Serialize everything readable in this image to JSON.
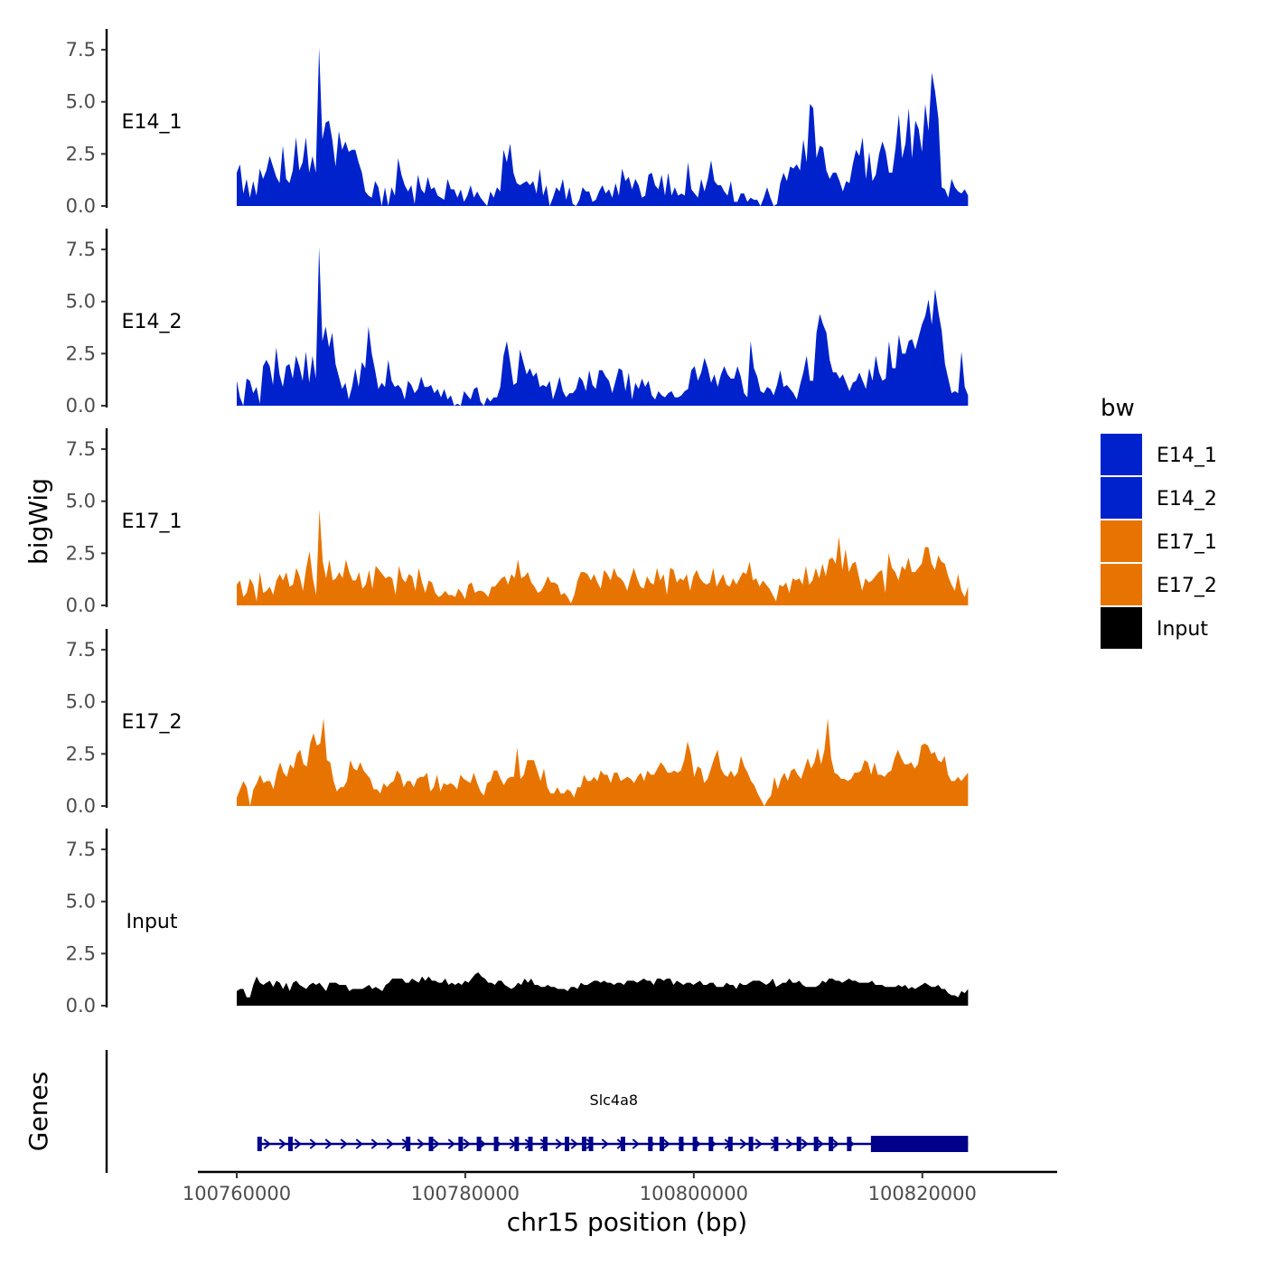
{
  "chart_data": {
    "type": "area",
    "ylabel": "bigWig",
    "xlabel": "chr15 position (bp)",
    "x_range": [
      100760000,
      100824000
    ],
    "x_axis_limits": [
      100756600,
      100831800
    ],
    "x_ticks": [
      100760000,
      100780000,
      100800000,
      100820000
    ],
    "x_tick_labels": [
      "100760000",
      "100780000",
      "100800000",
      "100820000"
    ],
    "ylim": [
      0,
      8.5
    ],
    "y_ticks": [
      0,
      2.5,
      5,
      7.5
    ],
    "y_tick_labels": [
      "0.0",
      "2.5",
      "5.0",
      "7.5"
    ],
    "tracks": [
      {
        "name": "E14_1",
        "color": "#0022CC",
        "values": [
          1.6,
          2.0,
          0.6,
          1.3,
          0.4,
          1.2,
          0.5,
          1.8,
          1.3,
          1.7,
          2.4,
          1.9,
          1.4,
          1.1,
          2.9,
          1.3,
          1.1,
          1.7,
          3.3,
          1.7,
          2.1,
          3.3,
          1.6,
          2.4,
          1.6,
          7.6,
          3.2,
          4.0,
          4.1,
          3.2,
          1.9,
          3.6,
          2.7,
          3.1,
          2.6,
          2.7,
          2.7,
          2.1,
          1.6,
          0.7,
          0.5,
          0.4,
          1.2,
          0.9,
          0.0,
          0.9,
          0.0,
          0.9,
          0.5,
          2.3,
          1.5,
          1.0,
          0.7,
          1.0,
          0.1,
          1.5,
          0.8,
          0.6,
          1.4,
          0.8,
          0.9,
          0.5,
          0.4,
          0.3,
          1.3,
          0.8,
          0.8,
          0.4,
          0.8,
          0.2,
          0.5,
          1.0,
          0.4,
          0.7,
          0.4,
          0.2,
          0.0,
          0.7,
          0.4,
          0.9,
          0.7,
          2.7,
          2.1,
          3.0,
          1.6,
          1.1,
          1.0,
          1.1,
          1.2,
          1.0,
          1.2,
          0.6,
          1.8,
          0.5,
          1.0,
          0.0,
          0.4,
          0.9,
          0.7,
          1.3,
          0.3,
          0.9,
          0.1,
          0.0,
          0.3,
          0.9,
          0.7,
          0.7,
          0.2,
          0.3,
          0.7,
          1.0,
          0.6,
          0.8,
          0.4,
          1.1,
          0.5,
          1.8,
          1.2,
          1.4,
          0.8,
          1.3,
          1.0,
          0.4,
          0.5,
          1.5,
          1.6,
          1.0,
          0.8,
          1.5,
          0.5,
          1.6,
          0.5,
          0.9,
          0.5,
          0.6,
          0.5,
          2.1,
          0.8,
          0.6,
          0.4,
          1.3,
          0.7,
          1.3,
          2.2,
          1.2,
          1.0,
          1.0,
          0.7,
          0.5,
          1.2,
          0.2,
          0.2,
          0.6,
          0.6,
          0.2,
          0.4,
          0.3,
          0.3,
          0.0,
          0.4,
          0.9,
          0.4,
          0.0,
          0.1,
          1.1,
          1.6,
          1.2,
          1.9,
          1.8,
          2.0,
          1.7,
          3.2,
          2.1,
          4.9,
          4.7,
          2.3,
          2.9,
          2.8,
          1.7,
          1.3,
          1.6,
          1.6,
          1.2,
          0.7,
          1.2,
          1.1,
          2.0,
          2.7,
          2.4,
          3.3,
          1.3,
          2.6,
          1.2,
          1.5,
          2.5,
          3.1,
          2.6,
          1.6,
          1.6,
          2.8,
          4.4,
          2.3,
          3.0,
          4.7,
          2.3,
          4.1,
          3.7,
          2.6,
          4.9,
          3.6,
          6.4,
          5.5,
          4.2,
          0.9,
          0.8,
          0.4,
          1.3,
          0.9,
          0.7,
          0.6,
          0.8,
          0.5
        ]
      },
      {
        "name": "E14_2",
        "color": "#0022CC",
        "values": [
          1.2,
          0.4,
          0.0,
          1.3,
          1.2,
          0.6,
          0.9,
          0.1,
          1.9,
          2.2,
          1.9,
          1.0,
          2.8,
          1.5,
          0.9,
          1.9,
          2.0,
          1.3,
          2.4,
          1.9,
          1.2,
          2.6,
          1.1,
          2.4,
          1.3,
          7.6,
          3.1,
          3.8,
          2.8,
          3.5,
          2.0,
          1.4,
          0.8,
          1.1,
          0.3,
          0.9,
          1.8,
          0.9,
          2.1,
          1.8,
          3.8,
          2.5,
          1.7,
          0.8,
          1.1,
          0.9,
          2.2,
          1.2,
          0.9,
          1.0,
          0.8,
          0.3,
          1.2,
          1.0,
          0.6,
          0.8,
          1.4,
          0.9,
          0.9,
          1.0,
          0.6,
          0.8,
          0.4,
          0.8,
          0.3,
          0.5,
          0.0,
          0.1,
          0.0,
          0.7,
          0.5,
          0.3,
          0.8,
          0.9,
          0.2,
          0.0,
          0.4,
          0.2,
          0.4,
          0.4,
          0.9,
          2.4,
          3.1,
          2.1,
          1.0,
          1.1,
          2.7,
          2.1,
          1.5,
          1.8,
          1.4,
          1.6,
          0.9,
          1.0,
          0.9,
          1.2,
          0.3,
          0.8,
          1.4,
          0.7,
          0.4,
          0.6,
          0.6,
          0.8,
          1.4,
          1.2,
          0.7,
          1.7,
          1.0,
          0.8,
          1.7,
          1.7,
          1.4,
          1.2,
          0.6,
          1.2,
          1.8,
          1.7,
          0.7,
          1.6,
          0.3,
          1.1,
          0.8,
          1.3,
          0.9,
          1.2,
          0.5,
          0.3,
          0.7,
          0.5,
          0.4,
          0.6,
          0.7,
          0.4,
          0.4,
          0.5,
          0.7,
          0.8,
          1.7,
          1.9,
          1.2,
          1.6,
          2.3,
          1.8,
          1.1,
          1.5,
          0.9,
          1.5,
          1.9,
          1.5,
          1.3,
          1.3,
          1.9,
          1.4,
          0.6,
          0.4,
          3.1,
          1.8,
          1.4,
          0.7,
          0.6,
          0.9,
          0.8,
          0.5,
          1.0,
          1.7,
          0.9,
          1.0,
          0.8,
          0.6,
          0.3,
          1.0,
          1.6,
          2.4,
          1.2,
          1.2,
          3.5,
          4.4,
          3.9,
          3.5,
          2.2,
          1.6,
          1.6,
          1.3,
          1.5,
          1.1,
          0.7,
          1.1,
          1.2,
          1.6,
          1.2,
          0.8,
          1.8,
          1.2,
          2.4,
          1.6,
          1.2,
          1.3,
          3.1,
          1.8,
          1.8,
          3.4,
          2.5,
          2.5,
          3.1,
          3.2,
          2.7,
          3.3,
          3.9,
          4.3,
          5.1,
          3.9,
          5.6,
          4.5,
          3.6,
          2.0,
          1.3,
          0.6,
          0.7,
          0.6,
          2.6,
          0.9,
          0.5
        ]
      },
      {
        "name": "E17_1",
        "color": "#E87400",
        "values": [
          1.0,
          1.2,
          0.4,
          0.6,
          1.3,
          1.0,
          0.2,
          1.6,
          0.6,
          0.7,
          0.9,
          0.5,
          1.2,
          1.5,
          1.2,
          1.6,
          0.9,
          1.0,
          1.8,
          1.4,
          0.7,
          1.8,
          2.6,
          1.3,
          0.5,
          4.6,
          2.1,
          1.3,
          2.2,
          1.2,
          1.3,
          1.6,
          1.3,
          2.2,
          1.6,
          1.2,
          1.2,
          1.6,
          0.8,
          1.0,
          1.7,
          0.8,
          1.9,
          1.7,
          1.5,
          1.3,
          1.4,
          1.3,
          0.5,
          1.9,
          1.3,
          1.1,
          1.5,
          1.4,
          0.7,
          1.8,
          1.1,
          0.6,
          1.2,
          1.1,
          0.6,
          0.4,
          0.5,
          0.7,
          0.5,
          0.5,
          0.4,
          0.8,
          0.6,
          0.3,
          1.0,
          1.1,
          0.6,
          0.7,
          0.7,
          0.6,
          0.4,
          0.9,
          0.9,
          1.1,
          1.3,
          1.4,
          1.0,
          1.5,
          1.3,
          2.2,
          1.3,
          1.4,
          1.6,
          1.1,
          0.9,
          0.6,
          0.7,
          1.0,
          1.4,
          1.1,
          1.1,
          1.0,
          0.5,
          0.6,
          0.4,
          0.1,
          0.5,
          1.2,
          1.6,
          1.6,
          1.5,
          1.2,
          1.5,
          1.1,
          0.8,
          1.7,
          1.5,
          1.2,
          1.8,
          1.4,
          1.3,
          1.1,
          0.7,
          1.3,
          1.8,
          1.3,
          0.9,
          0.8,
          1.4,
          1.1,
          1.0,
          1.8,
          1.2,
          1.5,
          0.5,
          1.8,
          1.7,
          1.1,
          1.3,
          1.2,
          1.5,
          0.7,
          1.4,
          1.7,
          1.3,
          1.1,
          1.0,
          1.1,
          1.8,
          0.9,
          1.2,
          1.5,
          1.0,
          0.9,
          1.3,
          1.0,
          1.3,
          1.6,
          1.5,
          2.1,
          1.2,
          1.3,
          0.9,
          1.2,
          1.0,
          0.8,
          0.5,
          0.2,
          1.0,
          0.9,
          1.1,
          0.6,
          1.3,
          1.2,
          1.3,
          1.0,
          1.9,
          1.0,
          1.2,
          1.8,
          1.3,
          2.0,
          1.4,
          2.2,
          2.3,
          2.0,
          3.3,
          1.7,
          2.7,
          1.6,
          2.0,
          2.1,
          1.4,
          0.7,
          1.3,
          1.1,
          1.2,
          1.4,
          1.6,
          1.7,
          0.6,
          2.5,
          1.8,
          1.6,
          1.2,
          1.9,
          1.7,
          2.3,
          1.6,
          1.6,
          1.8,
          2.0,
          2.8,
          2.8,
          2.0,
          1.7,
          2.4,
          2.1,
          2.0,
          1.4,
          1.0,
          0.7,
          1.5,
          0.7,
          0.4,
          0.9
        ]
      },
      {
        "name": "E17_2",
        "color": "#E87400",
        "values": [
          0.4,
          0.8,
          1.2,
          0.9,
          0.0,
          0.8,
          1.1,
          1.5,
          1.1,
          1.2,
          1.2,
          0.8,
          1.6,
          2.1,
          1.6,
          1.4,
          2.0,
          1.8,
          2.5,
          2.7,
          2.0,
          1.9,
          3.0,
          3.5,
          2.9,
          3.0,
          4.2,
          2.2,
          2.1,
          1.2,
          0.7,
          0.9,
          0.9,
          1.2,
          2.2,
          1.8,
          1.7,
          2.1,
          1.7,
          1.5,
          1.3,
          0.8,
          0.8,
          0.6,
          1.1,
          0.9,
          1.1,
          1.2,
          1.7,
          1.5,
          0.9,
          1.2,
          1.2,
          0.9,
          1.3,
          1.4,
          1.4,
          1.6,
          0.7,
          0.9,
          1.5,
          0.7,
          1.1,
          1.0,
          1.1,
          1.0,
          0.8,
          1.5,
          1.3,
          1.2,
          1.1,
          1.6,
          1.1,
          0.7,
          0.5,
          1.1,
          1.2,
          1.7,
          1.7,
          1.3,
          1.0,
          1.3,
          1.4,
          1.4,
          2.8,
          1.3,
          1.5,
          2.2,
          2.2,
          2.2,
          1.7,
          1.2,
          1.8,
          0.9,
          0.6,
          0.6,
          0.9,
          0.6,
          0.6,
          0.8,
          0.7,
          0.4,
          0.9,
          0.9,
          1.5,
          1.2,
          1.2,
          1.4,
          1.2,
          1.7,
          1.5,
          1.5,
          1.1,
          1.6,
          1.6,
          1.2,
          1.3,
          1.4,
          1.3,
          1.1,
          1.4,
          1.6,
          1.2,
          1.7,
          1.5,
          1.5,
          1.8,
          2.1,
          1.9,
          1.6,
          1.6,
          1.7,
          1.6,
          1.7,
          2.2,
          3.1,
          2.5,
          1.4,
          1.9,
          1.8,
          1.1,
          1.3,
          1.8,
          2.3,
          2.7,
          1.8,
          1.5,
          1.4,
          1.7,
          1.4,
          1.6,
          2.4,
          1.9,
          1.6,
          1.2,
          1.0,
          0.6,
          0.3,
          0.0,
          0.3,
          0.5,
          1.4,
          0.8,
          1.3,
          1.6,
          1.2,
          1.7,
          1.8,
          1.5,
          1.3,
          1.8,
          2.3,
          1.8,
          2.1,
          2.8,
          2.0,
          2.7,
          4.2,
          2.3,
          1.6,
          1.5,
          1.3,
          1.3,
          1.2,
          1.3,
          1.6,
          1.6,
          1.7,
          2.2,
          2.1,
          1.5,
          2.1,
          1.5,
          1.5,
          1.4,
          1.6,
          1.7,
          2.3,
          2.7,
          2.3,
          2.0,
          2.0,
          2.1,
          1.8,
          2.0,
          2.9,
          3.0,
          2.9,
          2.5,
          2.6,
          2.2,
          2.1,
          2.4,
          1.5,
          1.2,
          1.2,
          1.4,
          1.2,
          1.4,
          1.6
        ]
      },
      {
        "name": "Input",
        "color": "#000000",
        "values": [
          0.7,
          0.8,
          0.8,
          0.4,
          0.4,
          1.0,
          1.4,
          1.1,
          1.0,
          1.1,
          1.2,
          0.9,
          1.2,
          1.1,
          0.8,
          1.1,
          0.7,
          1.1,
          1.2,
          1.0,
          0.9,
          0.8,
          1.0,
          1.1,
          1.0,
          1.1,
          0.9,
          0.7,
          1.1,
          1.1,
          1.1,
          1.0,
          1.0,
          1.0,
          0.7,
          0.8,
          0.8,
          0.8,
          0.8,
          0.9,
          1.0,
          0.8,
          0.9,
          0.8,
          0.7,
          1.0,
          1.1,
          1.3,
          1.3,
          1.3,
          1.3,
          1.1,
          1.1,
          1.3,
          1.2,
          1.1,
          1.4,
          1.2,
          1.4,
          1.2,
          1.2,
          1.1,
          1.1,
          1.3,
          1.0,
          1.1,
          1.0,
          1.1,
          1.0,
          1.2,
          1.1,
          1.3,
          1.5,
          1.6,
          1.4,
          1.3,
          1.1,
          1.1,
          1.0,
          1.2,
          1.2,
          1.0,
          0.9,
          0.8,
          0.9,
          1.1,
          1.0,
          1.3,
          1.1,
          1.3,
          1.0,
          1.0,
          0.9,
          0.9,
          1.0,
          0.9,
          0.9,
          0.8,
          0.8,
          0.8,
          0.7,
          0.9,
          0.9,
          0.8,
          1.1,
          1.0,
          1.0,
          1.1,
          1.2,
          1.2,
          1.1,
          1.2,
          1.1,
          1.1,
          1.0,
          1.1,
          1.1,
          1.0,
          1.2,
          1.2,
          1.2,
          1.1,
          1.2,
          1.3,
          1.2,
          1.2,
          1.0,
          1.3,
          1.3,
          1.2,
          1.3,
          1.3,
          1.0,
          1.2,
          1.1,
          1.0,
          1.1,
          1.1,
          1.0,
          1.1,
          1.2,
          1.0,
          1.0,
          1.1,
          1.1,
          0.9,
          0.9,
          0.9,
          1.1,
          1.0,
          1.0,
          0.8,
          1.1,
          1.0,
          1.0,
          1.1,
          1.2,
          1.2,
          1.2,
          1.1,
          1.0,
          1.1,
          1.3,
          0.9,
          1.0,
          1.1,
          1.1,
          1.3,
          1.1,
          1.1,
          1.2,
          1.0,
          0.9,
          0.9,
          0.9,
          0.9,
          1.0,
          1.2,
          1.1,
          1.3,
          1.3,
          1.2,
          1.2,
          1.1,
          1.2,
          1.3,
          1.2,
          1.2,
          1.1,
          1.1,
          1.1,
          1.1,
          1.2,
          1.0,
          1.0,
          1.0,
          0.9,
          0.9,
          0.9,
          0.9,
          1.0,
          0.9,
          1.0,
          0.8,
          0.9,
          0.8,
          0.9,
          1.0,
          1.1,
          1.0,
          0.9,
          0.9,
          1.0,
          0.8,
          0.8,
          0.6,
          0.5,
          0.5,
          0.4,
          0.7,
          0.6,
          0.8
        ]
      }
    ],
    "genes": {
      "panel_label": "Genes",
      "name": "Slc4a8",
      "color": "#00008B",
      "start": 100762000,
      "end": 100824000,
      "thick_start": 100815500,
      "exons": [
        100762000,
        100764700,
        100775000,
        100777000,
        100779600,
        100781200,
        100782700,
        100784500,
        100785700,
        100787000,
        100788900,
        100790400,
        100791000,
        100793800,
        100796200,
        100797200,
        100798900,
        100800100,
        100801500,
        100803200,
        100805000,
        100807200,
        100809200,
        100810700,
        100812000,
        100813600
      ]
    },
    "legend": {
      "title": "bw",
      "items": [
        {
          "label": "E14_1",
          "color": "#0022CC"
        },
        {
          "label": "E14_2",
          "color": "#0022CC"
        },
        {
          "label": "E17_1",
          "color": "#E87400"
        },
        {
          "label": "E17_2",
          "color": "#E87400"
        },
        {
          "label": "Input",
          "color": "#000000"
        }
      ]
    }
  }
}
